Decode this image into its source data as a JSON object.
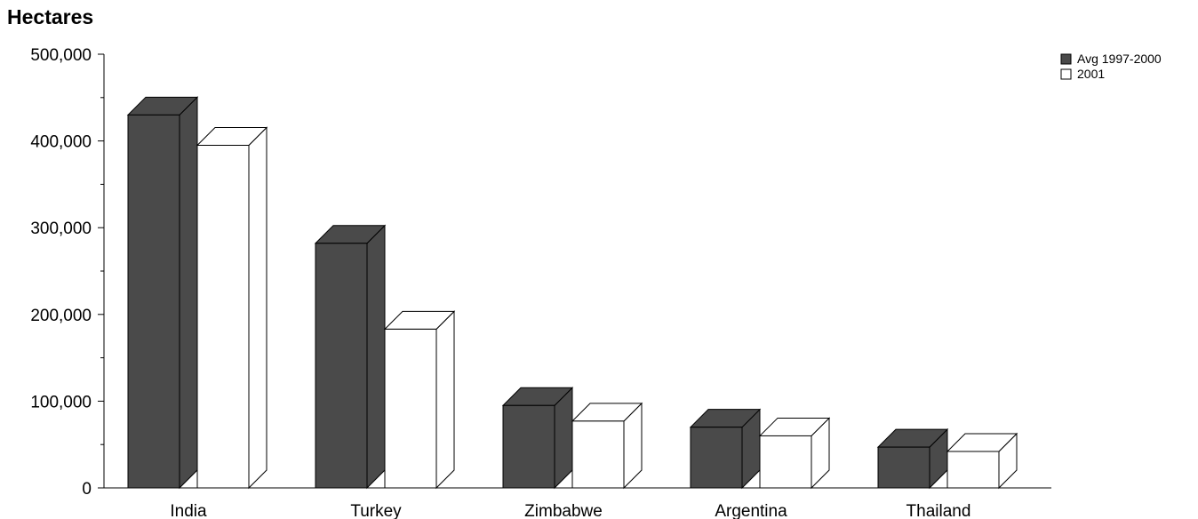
{
  "chart_data": {
    "type": "bar",
    "title": "Hectares",
    "categories": [
      "India",
      "Turkey",
      "Zimbabwe",
      "Argentina",
      "Thailand"
    ],
    "series": [
      {
        "name": "Avg 1997-2000",
        "values": [
          430000,
          282000,
          95000,
          70000,
          47000
        ],
        "color": "#4a4a4a"
      },
      {
        "name": "2001",
        "values": [
          395000,
          183000,
          77000,
          60000,
          42000
        ],
        "color": "#ffffff"
      }
    ],
    "ylim": [
      0,
      500000
    ],
    "yticks": [
      "0",
      "100,000",
      "200,000",
      "300,000",
      "400,000",
      "500,000"
    ],
    "grid": false,
    "legend_position": "top-right",
    "style": "3d-bar"
  }
}
